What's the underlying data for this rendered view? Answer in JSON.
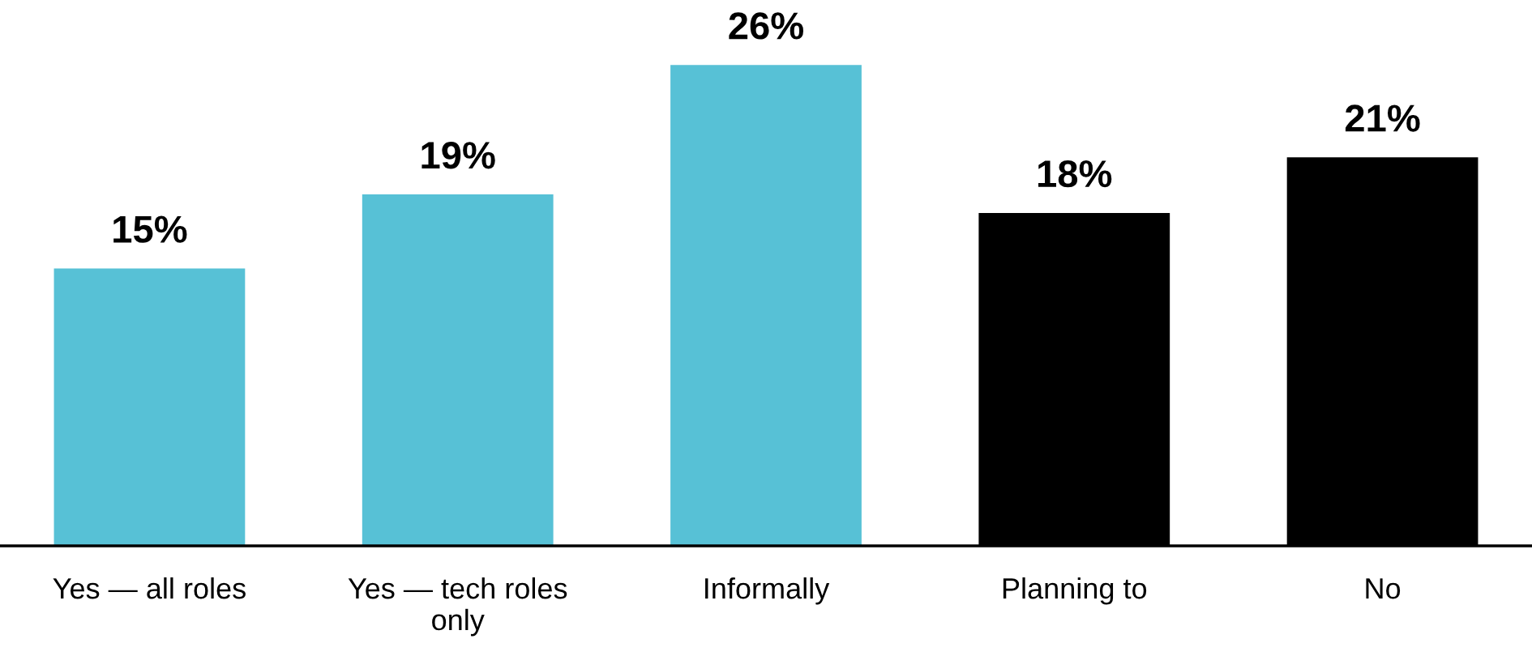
{
  "chart_data": {
    "type": "bar",
    "categories": [
      "Yes — all roles",
      "Yes — tech roles only",
      "Informally",
      "Planning to",
      "No"
    ],
    "values": [
      15,
      19,
      26,
      18,
      21
    ],
    "colors": [
      "#57c1d6",
      "#57c1d6",
      "#57c1d6",
      "#000000",
      "#000000"
    ],
    "value_labels": [
      "15%",
      "19%",
      "26%",
      "18%",
      "21%"
    ],
    "grid": false,
    "legend": false
  }
}
